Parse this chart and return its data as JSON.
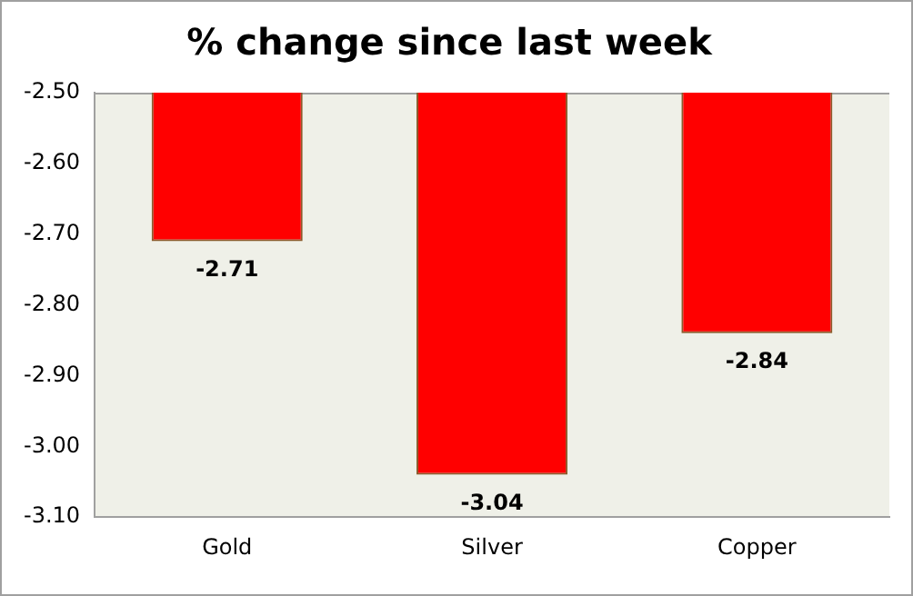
{
  "chart_data": {
    "type": "bar",
    "title": "% change since last week",
    "categories": [
      "Gold",
      "Silver",
      "Copper"
    ],
    "values": [
      -2.71,
      -3.04,
      -2.84
    ],
    "color": "#ff0000",
    "ylim": [
      -3.1,
      -2.5
    ],
    "yticks": [
      {
        "value": -3.1,
        "label": "-3.10"
      },
      {
        "value": -3.0,
        "label": "-3.00"
      },
      {
        "value": -2.9,
        "label": "-2.90"
      },
      {
        "value": -2.8,
        "label": "-2.80"
      },
      {
        "value": -2.7,
        "label": "-2.70"
      },
      {
        "value": -2.6,
        "label": "-2.60"
      },
      {
        "value": -2.5,
        "label": "-2.50"
      }
    ],
    "grid": false,
    "legend": false,
    "data_labels": true
  }
}
